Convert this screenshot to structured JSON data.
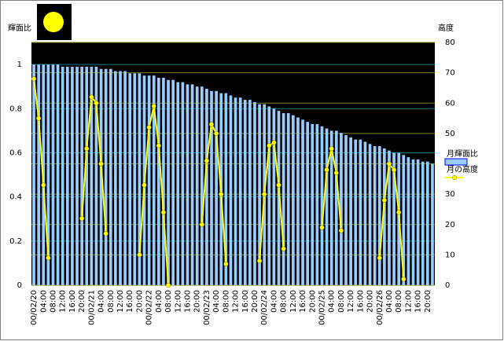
{
  "chart_data": {
    "type": "bar-line",
    "y_label": "輝面比",
    "y2_label": "高度",
    "categories": [
      "00/02/20",
      null,
      "04:00",
      null,
      "08:00",
      null,
      "12:00",
      null,
      "16:00",
      null,
      "20:00",
      null,
      "00/02/21",
      null,
      "04:00",
      null,
      "08:00",
      null,
      "12:00",
      null,
      "16:00",
      null,
      "20:00",
      null,
      "00/02/22",
      null,
      "04:00",
      null,
      "08:00",
      null,
      "12:00",
      null,
      "16:00",
      null,
      "20:00",
      null,
      "00/02/23",
      null,
      "04:00",
      null,
      "08:00",
      null,
      "12:00",
      null,
      "16:00",
      null,
      "20:00",
      null,
      "00/02/24",
      null,
      "04:00",
      null,
      "08:00",
      null,
      "12:00",
      null,
      "16:00",
      null,
      "20:00",
      null,
      "00/02/25",
      null,
      "04:00",
      null,
      "08:00",
      null,
      "12:00",
      null,
      "16:00",
      null,
      "20:00",
      null,
      "00/02/26",
      null,
      "04:00",
      null,
      "08:00",
      null,
      "12:00",
      null,
      "16:00",
      null,
      "20:00",
      null
    ],
    "series": [
      {
        "name": "月輝面比",
        "color": "#99ccff",
        "values": [
          1.0,
          1.0,
          1.0,
          1.0,
          1.0,
          1.0,
          0.99,
          0.99,
          0.99,
          0.99,
          0.99,
          0.99,
          0.99,
          0.99,
          0.98,
          0.98,
          0.98,
          0.97,
          0.97,
          0.97,
          0.96,
          0.96,
          0.96,
          0.95,
          0.95,
          0.95,
          0.94,
          0.94,
          0.93,
          0.93,
          0.92,
          0.92,
          0.91,
          0.91,
          0.9,
          0.9,
          0.89,
          0.88,
          0.88,
          0.87,
          0.87,
          0.86,
          0.85,
          0.85,
          0.84,
          0.84,
          0.83,
          0.82,
          0.82,
          0.81,
          0.8,
          0.79,
          0.78,
          0.78,
          0.77,
          0.76,
          0.75,
          0.74,
          0.73,
          0.73,
          0.72,
          0.71,
          0.7,
          0.7,
          0.69,
          0.68,
          0.67,
          0.66,
          0.66,
          0.65,
          0.64,
          0.63,
          0.63,
          0.62,
          0.61,
          0.6,
          0.6,
          0.59,
          0.58,
          0.57,
          0.57,
          0.56,
          0.56,
          0.55
        ]
      },
      {
        "name": "月の高度",
        "color": "#ffff00",
        "axis": "y2",
        "values": [
          68,
          55,
          33,
          9,
          null,
          null,
          null,
          null,
          null,
          null,
          22,
          45,
          62,
          60,
          40,
          17,
          null,
          null,
          null,
          null,
          null,
          null,
          10,
          33,
          52,
          59,
          46,
          24,
          0,
          null,
          null,
          null,
          null,
          null,
          null,
          20,
          41,
          53,
          50,
          30,
          7,
          null,
          null,
          null,
          null,
          null,
          null,
          8,
          30,
          46,
          47,
          33,
          12,
          null,
          null,
          null,
          null,
          null,
          null,
          null,
          19,
          38,
          45,
          37,
          18,
          null,
          null,
          null,
          null,
          null,
          null,
          null,
          9,
          28,
          40,
          38,
          24,
          2,
          null,
          null,
          null,
          null,
          null,
          null
        ]
      }
    ],
    "ylim": [
      0,
      1.1
    ],
    "yticks": [
      0,
      0.2,
      0.4,
      0.6,
      0.8,
      1
    ],
    "y2lim": [
      0,
      80
    ],
    "y2ticks": [
      0,
      10,
      20,
      30,
      40,
      50,
      60,
      70,
      80
    ],
    "grid": true,
    "legend": "right"
  }
}
